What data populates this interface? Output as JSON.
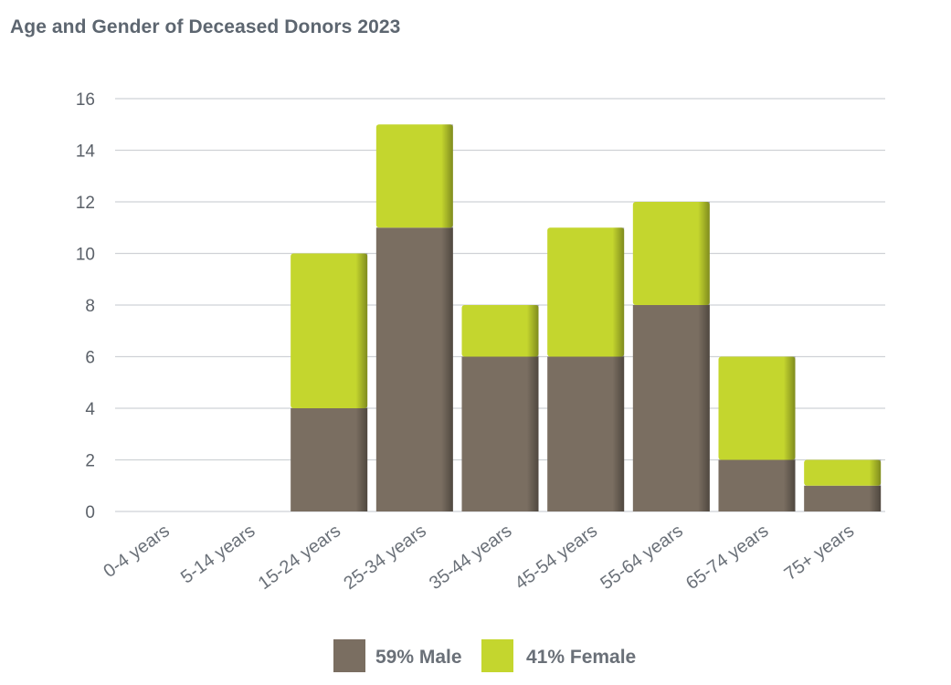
{
  "chart_data": {
    "type": "bar",
    "stacked": true,
    "title": "Age and Gender of Deceased Donors 2023",
    "categories": [
      "0-4 years",
      "5-14 years",
      "15-24 years",
      "25-34 years",
      "35-44 years",
      "45-54 years",
      "55-64 years",
      "65-74 years",
      "75+ years"
    ],
    "series": [
      {
        "name": "59% Male",
        "color": "#7a6e61",
        "values": [
          0,
          0,
          4,
          11,
          6,
          6,
          8,
          2,
          1
        ]
      },
      {
        "name": "41% Female",
        "color": "#c4d62e",
        "values": [
          0,
          0,
          6,
          4,
          2,
          5,
          4,
          4,
          1
        ]
      }
    ],
    "yticks": [
      "0",
      "2",
      "4",
      "6",
      "8",
      "10",
      "12",
      "14",
      "16"
    ],
    "ylim": [
      0,
      16
    ],
    "xlabel": "",
    "ylabel": "",
    "grid": true,
    "legend_position": "bottom"
  }
}
